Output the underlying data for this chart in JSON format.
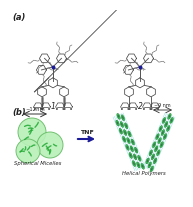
{
  "panel_a_label": "(a)",
  "panel_b_label": "(b)",
  "compound1_label": "1",
  "compound2_label": "2",
  "spherical_micelles_label": "Spherical Micelles",
  "helical_polymers_label": "Helical Polymers",
  "arrow_label": "TNF",
  "scale1_label": "~12nm",
  "scale2_label": "~9 nm",
  "bg_color": "#ffffff",
  "text_color": "#222222",
  "arrow_color": "#1a1a99",
  "mol_line_color": "#555555",
  "alkyl_color": "#777777",
  "ring_color": "#444444",
  "micelle_fill": "#b8f0b8",
  "micelle_edge": "#66bb66",
  "micelle_inner": "#22aa33",
  "helix_green": "#22bb44",
  "helix_darkgreen": "#116622",
  "helix_cyan": "#55cccc",
  "helix_dark": "#224422",
  "fig_width": 1.73,
  "fig_height": 1.89
}
